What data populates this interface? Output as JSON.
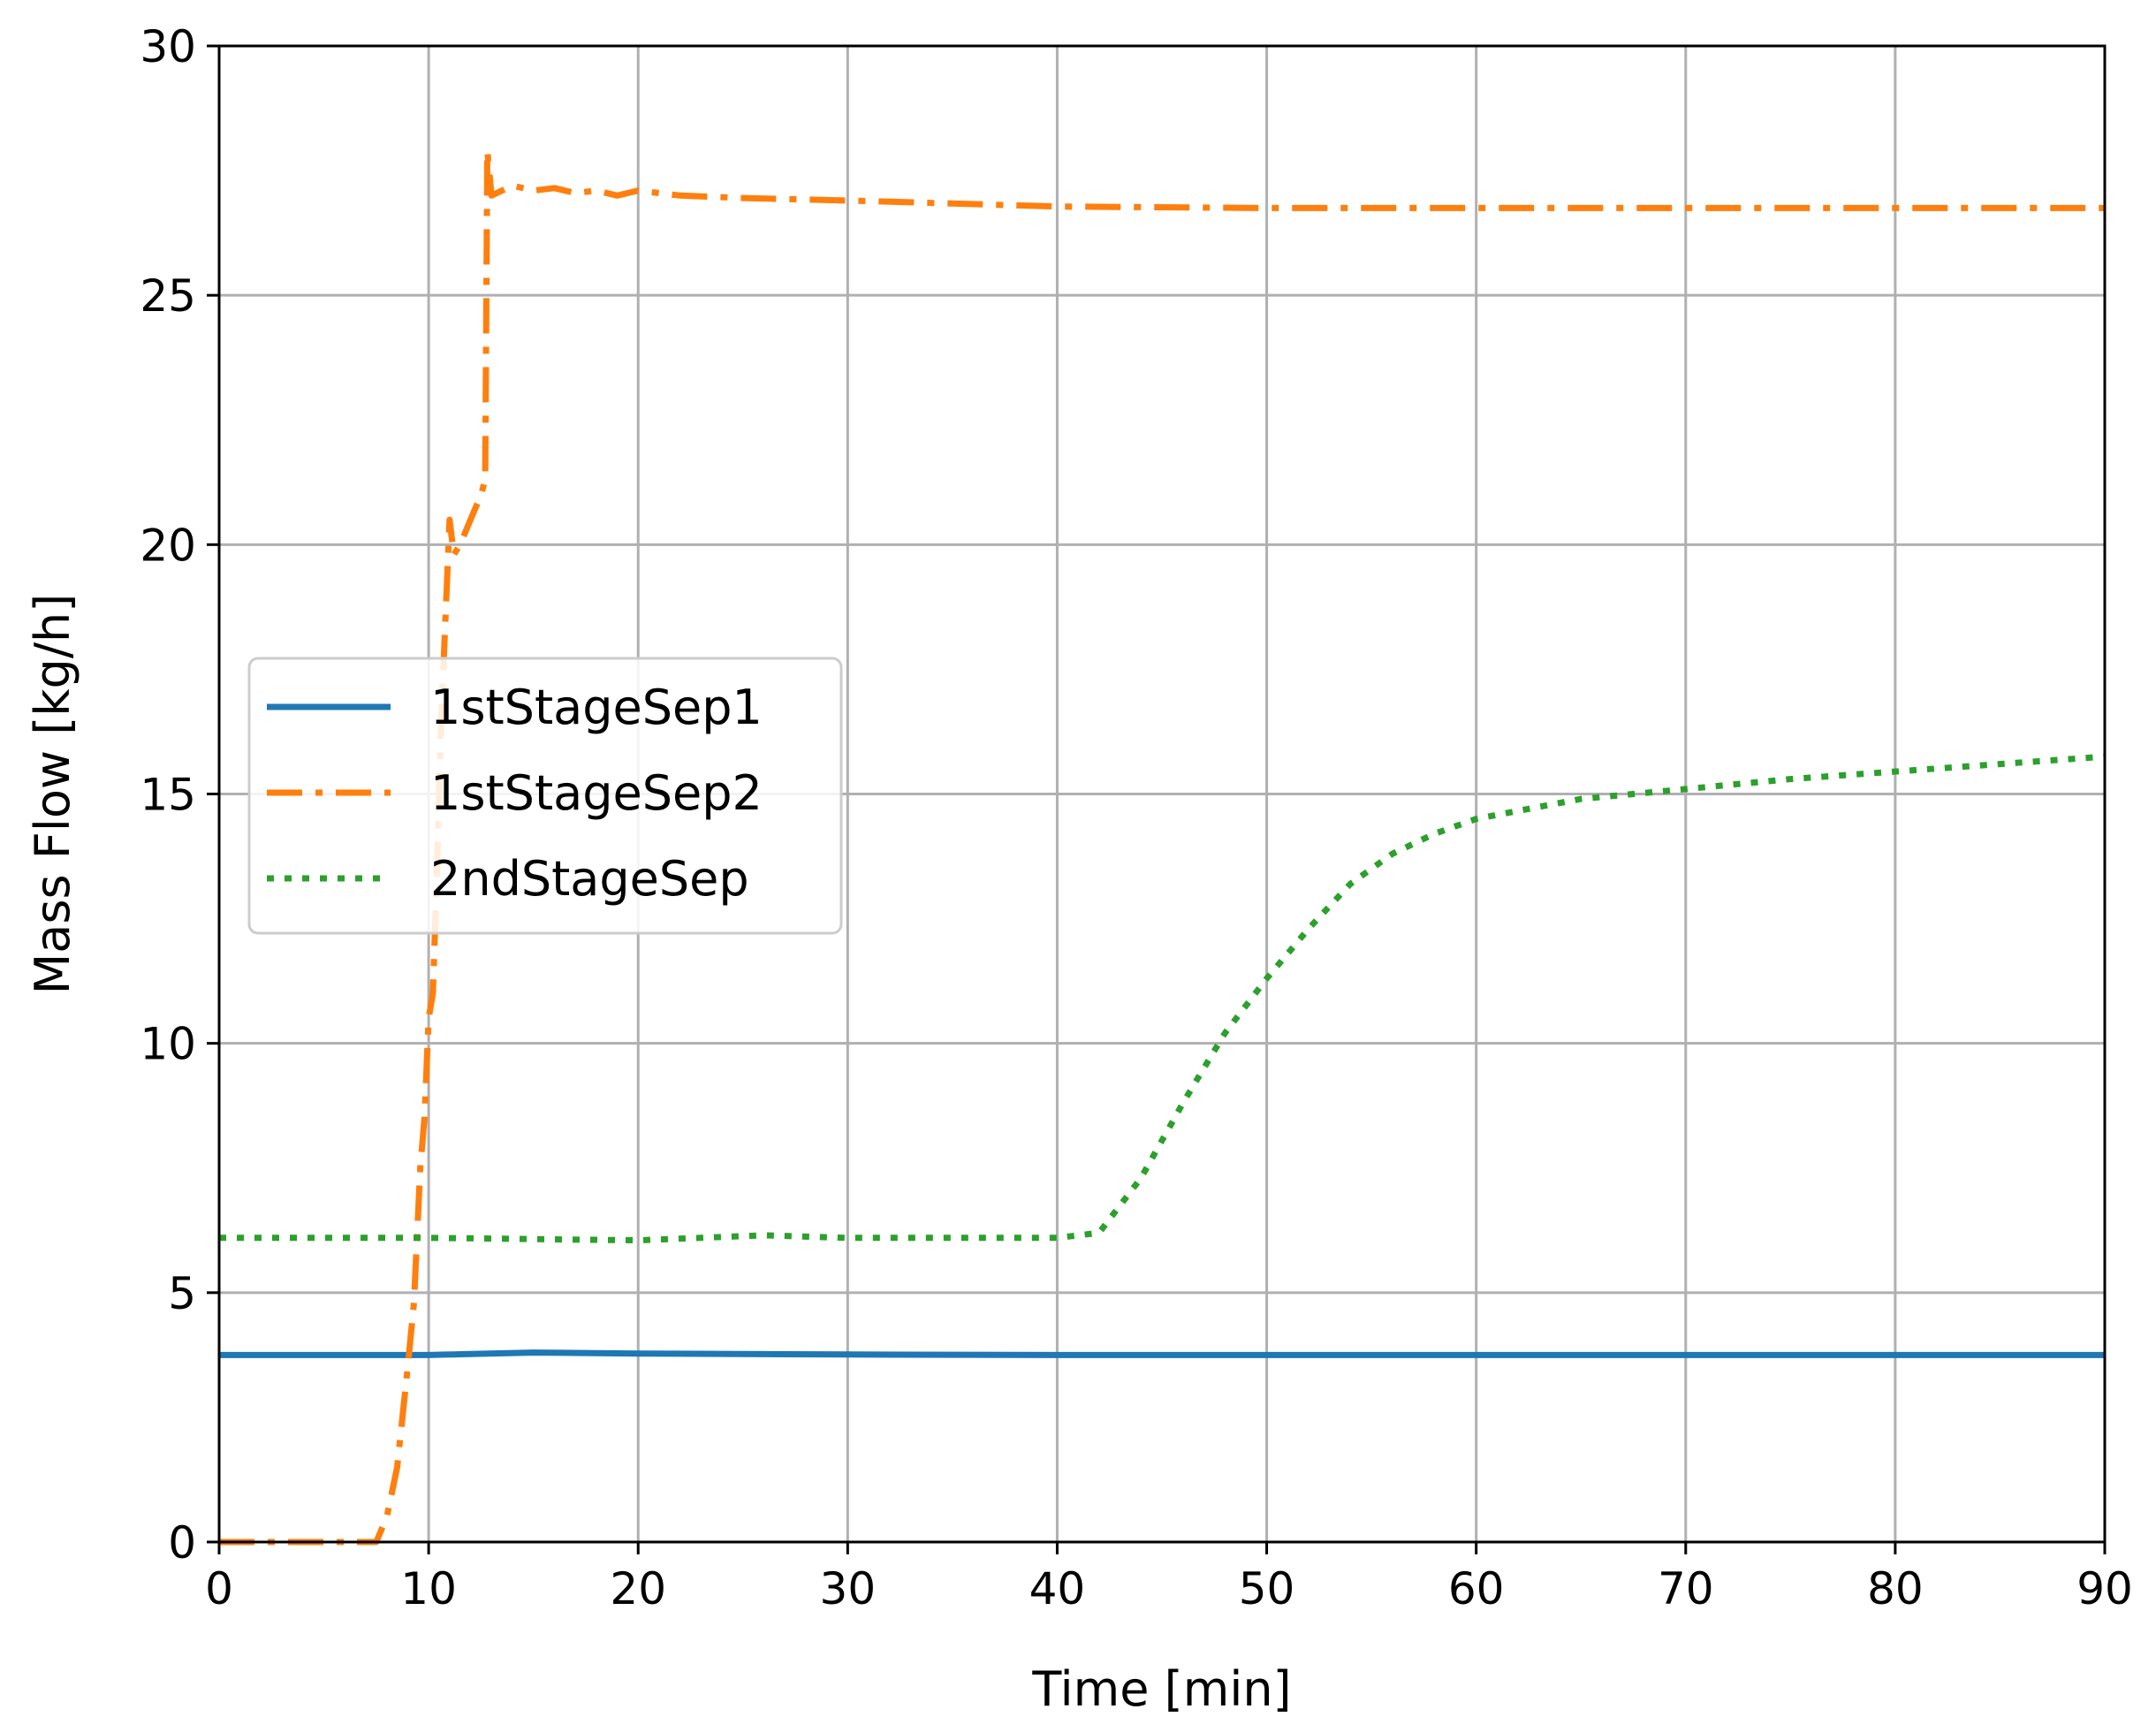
{
  "chart_data": {
    "type": "line",
    "title": "",
    "xlabel": "Time [min]",
    "ylabel": "Mass Flow [kg/h]",
    "xlim": [
      0,
      90
    ],
    "ylim": [
      0,
      30
    ],
    "xticks": [
      "0",
      "10",
      "20",
      "30",
      "40",
      "50",
      "60",
      "70",
      "80",
      "90"
    ],
    "yticks": [
      "0",
      "5",
      "10",
      "15",
      "20",
      "25",
      "30"
    ],
    "grid": true,
    "legend_position": "center-left",
    "series": [
      {
        "name": "1stStageSep1",
        "color": "#1f77b4",
        "style": "solid",
        "x": [
          0,
          10,
          12,
          15,
          20,
          30,
          40,
          50,
          60,
          70,
          80,
          90
        ],
        "y": [
          3.75,
          3.75,
          3.77,
          3.8,
          3.78,
          3.76,
          3.75,
          3.75,
          3.75,
          3.75,
          3.75,
          3.75
        ]
      },
      {
        "name": "1stStageSep2",
        "color": "#ff7f0e",
        "style": "dashdot",
        "x": [
          0,
          7.5,
          8.0,
          8.5,
          9.0,
          9.3,
          9.6,
          9.8,
          10.0,
          10.2,
          10.4,
          10.6,
          10.8,
          11.0,
          11.2,
          11.5,
          12.0,
          12.5,
          12.7,
          12.8,
          13.0,
          13.5,
          14,
          15,
          16,
          17,
          18,
          19,
          19.5,
          20,
          22,
          25,
          30,
          40,
          50,
          60,
          70,
          80,
          90
        ],
        "y": [
          0,
          0,
          0.5,
          1.5,
          3.5,
          4.8,
          7.5,
          8.5,
          10.5,
          11.0,
          13.5,
          16.5,
          18.5,
          20.5,
          19.8,
          20.0,
          20.5,
          21.0,
          21.3,
          27.9,
          27.0,
          27.1,
          27.2,
          27.1,
          27.15,
          27.05,
          27.1,
          27.0,
          27.05,
          27.1,
          27.0,
          26.95,
          26.9,
          26.78,
          26.75,
          26.75,
          26.75,
          26.75,
          26.75
        ]
      },
      {
        "name": "2ndStageSep",
        "color": "#2ca02c",
        "style": "dotted",
        "x": [
          0,
          10,
          20,
          26,
          30,
          40,
          42,
          44,
          46,
          48,
          50,
          52,
          54,
          56,
          58,
          60,
          65,
          70,
          75,
          80,
          85,
          90
        ],
        "y": [
          6.1,
          6.1,
          6.05,
          6.15,
          6.1,
          6.1,
          6.2,
          7.3,
          8.8,
          10.2,
          11.3,
          12.3,
          13.2,
          13.8,
          14.2,
          14.5,
          14.9,
          15.1,
          15.3,
          15.45,
          15.6,
          15.75
        ]
      }
    ]
  }
}
